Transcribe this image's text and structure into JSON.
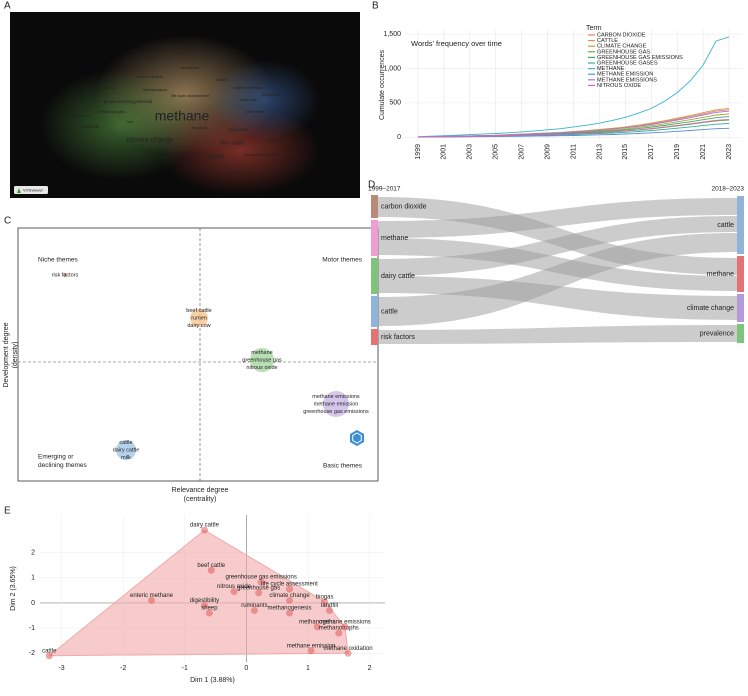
{
  "chart_data": [
    {
      "type": "wordcloud",
      "panel": "A",
      "logo": "VOSviewer",
      "words": [
        "methane",
        "climate change",
        "cattle",
        "dairy cattle",
        "global warming potential",
        "methane oxidation",
        "wetlands",
        "greenhouse gas",
        "methanogens",
        "enteric methane",
        "ruminants",
        "livestock",
        "dairy cow",
        "life cycle assessment",
        "nitrous oxide",
        "risk factors",
        "emissions",
        "beef cattle",
        "digestibility",
        "rumen",
        "methanotrophs",
        "soil",
        "paddy field",
        "carbon dioxide",
        "anaerobic digestion",
        "biogas"
      ]
    },
    {
      "type": "line",
      "panel": "B",
      "title": "Words' frequency over time",
      "y_label": "Cumulate occurrences",
      "legend_title": "Term",
      "grid": true,
      "x": [
        1999,
        2000,
        2001,
        2002,
        2003,
        2004,
        2005,
        2006,
        2007,
        2008,
        2009,
        2010,
        2011,
        2012,
        2013,
        2014,
        2015,
        2016,
        2017,
        2018,
        2019,
        2020,
        2021,
        2022,
        2023
      ],
      "xlim": [
        1998,
        2024
      ],
      "xticks": [
        1999,
        2001,
        2003,
        2005,
        2007,
        2009,
        2011,
        2013,
        2015,
        2017,
        2019,
        2021,
        2023
      ],
      "ylim": [
        -40,
        1560
      ],
      "yticks": [
        0,
        500,
        {
          "value": 1000,
          "label": "1,000"
        },
        {
          "value": 1500,
          "label": "1,500"
        }
      ],
      "series": [
        {
          "name": "CARBON DIOXIDE",
          "color": "#e8837a",
          "values": [
            4,
            8,
            12,
            16,
            20,
            24,
            28,
            36,
            44,
            52,
            60,
            68,
            80,
            92,
            108,
            124,
            144,
            168,
            196,
            228,
            264,
            300,
            340,
            380,
            400
          ]
        },
        {
          "name": "CATTLE",
          "color": "#d8964e",
          "values": [
            4,
            8,
            13,
            17,
            21,
            25,
            29,
            38,
            46,
            55,
            63,
            71,
            84,
            97,
            113,
            130,
            151,
            176,
            206,
            239,
            277,
            315,
            357,
            399,
            420
          ]
        },
        {
          "name": "CLIMATE CHANGE",
          "color": "#b3a436",
          "values": [
            3,
            7,
            10,
            14,
            17,
            20,
            24,
            31,
            37,
            44,
            51,
            58,
            68,
            78,
            92,
            105,
            122,
            143,
            167,
            194,
            224,
            255,
            289,
            323,
            340
          ]
        },
        {
          "name": "GREENHOUSE GAS",
          "color": "#6aab4c",
          "values": [
            3,
            5,
            8,
            10,
            13,
            15,
            18,
            23,
            28,
            33,
            38,
            43,
            50,
            58,
            68,
            78,
            90,
            105,
            123,
            143,
            165,
            188,
            213,
            238,
            250
          ]
        },
        {
          "name": "GREENHOUSE GAS EMISSIONS",
          "color": "#39ab6c",
          "values": [
            3,
            6,
            9,
            12,
            15,
            18,
            21,
            27,
            33,
            39,
            45,
            51,
            60,
            69,
            81,
            93,
            108,
            126,
            147,
            171,
            198,
            225,
            255,
            285,
            300
          ]
        },
        {
          "name": "GREENHOUSE GASES",
          "color": "#36ad9f",
          "values": [
            2,
            4,
            6,
            8,
            10,
            12,
            14,
            18,
            22,
            26,
            30,
            34,
            40,
            46,
            54,
            62,
            72,
            84,
            98,
            114,
            132,
            150,
            170,
            190,
            200
          ]
        },
        {
          "name": "METHANE",
          "color": "#39b3d2",
          "values": [
            8,
            15,
            22,
            30,
            38,
            46,
            55,
            65,
            78,
            92,
            108,
            125,
            150,
            175,
            205,
            245,
            290,
            350,
            420,
            520,
            650,
            820,
            1050,
            1400,
            1460
          ]
        },
        {
          "name": "METHANE EMISSION",
          "color": "#5b8ed8",
          "values": [
            1,
            3,
            4,
            5,
            7,
            8,
            9,
            12,
            14,
            17,
            20,
            22,
            26,
            30,
            35,
            40,
            47,
            55,
            64,
            74,
            86,
            98,
            111,
            124,
            130
          ]
        },
        {
          "name": "METHANE EMISSIONS",
          "color": "#9b7bd6",
          "values": [
            4,
            8,
            11,
            15,
            19,
            23,
            27,
            34,
            42,
            49,
            57,
            65,
            76,
            87,
            103,
            118,
            137,
            160,
            186,
            217,
            251,
            285,
            323,
            361,
            380
          ]
        },
        {
          "name": "NITROUS OXIDE",
          "color": "#d76aa6",
          "values": [
            3,
            5,
            8,
            10,
            13,
            16,
            18,
            23,
            29,
            34,
            39,
            44,
            52,
            60,
            70,
            81,
            94,
            109,
            127,
            148,
            172,
            195,
            221,
            247,
            260
          ]
        }
      ]
    },
    {
      "type": "thematic_map",
      "panel": "C",
      "x_label": [
        "Relevance degree",
        "(centrality)"
      ],
      "y_label": [
        "Development degree",
        "(density)"
      ],
      "quadrants": [
        [
          "Niche themes"
        ],
        [
          "Motor themes"
        ],
        [
          "Emerging or",
          "declining themes"
        ],
        [
          "Basic themes"
        ]
      ],
      "clusters": [
        {
          "terms": [
            "risk factors"
          ],
          "color": "#e88a8a"
        },
        {
          "terms": [
            "beef cattle",
            "rumen",
            "dairy cow"
          ],
          "color": "#f4c08a"
        },
        {
          "terms": [
            "methane",
            "greenhouse gas",
            "nitrous oxide"
          ],
          "color": "#9fd49a"
        },
        {
          "terms": [
            "methane emissions",
            "methane emission",
            "greenhouse gas emissions"
          ],
          "color": "#c9b3e6"
        },
        {
          "terms": [
            "cattle",
            "dairy cattle",
            "milk"
          ],
          "color": "#9cc3e6"
        }
      ]
    },
    {
      "type": "sankey",
      "panel": "D",
      "left_period": "1999–2017",
      "right_period": "2018–2023",
      "left_nodes": [
        {
          "name": "carbon dioxide",
          "color": "#b88a78"
        },
        {
          "name": "methane",
          "color": "#ef9fcf"
        },
        {
          "name": "dairy cattle",
          "color": "#7fc47c"
        },
        {
          "name": "cattle",
          "color": "#8fb4d8"
        },
        {
          "name": "risk factors",
          "color": "#e57373"
        }
      ],
      "right_nodes": [
        {
          "name": "cattle",
          "color": "#8fb4d8"
        },
        {
          "name": "methane",
          "color": "#e57373"
        },
        {
          "name": "climate change",
          "color": "#b49ad8"
        },
        {
          "name": "prevalence",
          "color": "#7fc47c"
        }
      ]
    },
    {
      "type": "scatter",
      "panel": "E",
      "x_label": "Dim 1 (3.88%)",
      "y_label": "Dim 2 (3.65%)",
      "color": "#e25c5c",
      "grid": true,
      "xlim": [
        -3.35,
        2.25
      ],
      "xticks": [
        -3,
        -2,
        -1,
        0,
        1,
        2
      ],
      "ylim": [
        -2.35,
        3.5
      ],
      "yticks": [
        -2,
        -1,
        0,
        1,
        2
      ],
      "labels": [
        "dairy cattle",
        "beef cattle",
        "enteric methane",
        "greenhouse gas emissions",
        "life cycle assessment",
        "biogas",
        "landfill",
        "climate change",
        "nitrous oxide",
        "ruminants",
        "methanogenesis",
        "digestibility",
        "sheep",
        "methanogens",
        "methanotrophs",
        "methane emissions",
        "methane emission",
        "methane oxidation",
        "cattle",
        "greenhouse gas"
      ],
      "x": [
        -0.68,
        -0.57,
        -1.54,
        0.24,
        0.7,
        1.27,
        1.35,
        0.7,
        -0.2,
        0.13,
        0.7,
        -0.68,
        -0.6,
        1.15,
        1.5,
        1.6,
        1.05,
        1.65,
        -3.2,
        0.2
      ],
      "values": [
        2.9,
        1.3,
        0.1,
        0.83,
        0.55,
        0.05,
        -0.3,
        0.1,
        0.45,
        -0.3,
        -0.4,
        -0.1,
        -0.4,
        -0.95,
        -1.2,
        -0.95,
        -1.9,
        -2.0,
        -2.1,
        0.4
      ]
    }
  ]
}
